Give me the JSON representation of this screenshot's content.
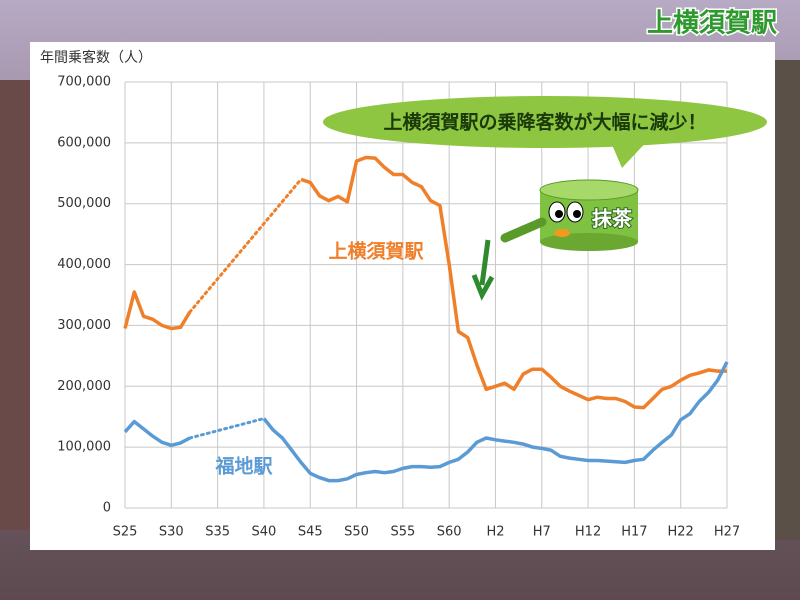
{
  "chart_data": {
    "type": "line",
    "title": "上横須賀駅",
    "ylabel": "年間乗客数（人）",
    "annotations": [
      "上横須賀駅の乗降客数が大幅に減少！",
      "抹茶"
    ],
    "categories": [
      "S25",
      null,
      null,
      null,
      null,
      "S30",
      null,
      null,
      null,
      null,
      "S35",
      null,
      null,
      null,
      null,
      "S40",
      null,
      null,
      null,
      null,
      "S45",
      null,
      null,
      null,
      null,
      "S50",
      null,
      null,
      null,
      null,
      "S55",
      null,
      null,
      null,
      null,
      "S60",
      null,
      null,
      null,
      null,
      "H2",
      null,
      null,
      null,
      null,
      "H7",
      null,
      null,
      null,
      null,
      "H12",
      null,
      null,
      null,
      null,
      "H17",
      null,
      null,
      null,
      null,
      "H22",
      null,
      null,
      null,
      null,
      "H27"
    ],
    "series": [
      {
        "name": "上横須賀駅",
        "color": "#f07f2a",
        "values": [
          295000,
          355000,
          315000,
          310000,
          300000,
          295000,
          297000,
          322000,
          null,
          null,
          null,
          null,
          null,
          null,
          null,
          null,
          null,
          null,
          null,
          540000,
          535000,
          513000,
          505000,
          512000,
          503000,
          570000,
          576000,
          575000,
          560000,
          548000,
          548000,
          535000,
          528000,
          505000,
          497000,
          400000,
          290000,
          280000,
          235000,
          195000,
          200000,
          205000,
          195000,
          220000,
          228000,
          228000,
          215000,
          200000,
          192000,
          185000,
          178000,
          182000,
          180000,
          180000,
          175000,
          166000,
          165000,
          180000,
          195000,
          200000,
          210000,
          218000,
          222000,
          227000,
          225000,
          225000
        ]
      },
      {
        "name": "福地駅",
        "color": "#5b9bd5",
        "values": [
          125000,
          142000,
          130000,
          118000,
          108000,
          103000,
          107000,
          115000,
          null,
          null,
          null,
          null,
          null,
          null,
          null,
          147000,
          128000,
          115000,
          95000,
          75000,
          57000,
          50000,
          45000,
          45000,
          48000,
          55000,
          58000,
          60000,
          58000,
          60000,
          65000,
          68000,
          68000,
          67000,
          68000,
          75000,
          80000,
          92000,
          108000,
          115000,
          112000,
          110000,
          108000,
          105000,
          100000,
          98000,
          95000,
          85000,
          82000,
          80000,
          78000,
          78000,
          77000,
          76000,
          75000,
          78000,
          80000,
          95000,
          108000,
          120000,
          145000,
          155000,
          175000,
          190000,
          210000,
          240000
        ]
      }
    ],
    "ylim": [
      0,
      700000
    ],
    "yticks": [
      0,
      {
        "value": 100000,
        "label": "100,000"
      },
      {
        "value": 200000,
        "label": "200,000"
      },
      {
        "value": 300000,
        "label": "300,000"
      },
      {
        "value": 400000,
        "label": "400,000"
      },
      {
        "value": 500000,
        "label": "500,000"
      },
      {
        "value": 600000,
        "label": "600,000"
      },
      {
        "value": 700000,
        "label": "700,000"
      }
    ],
    "grid": true,
    "gap_line": "dotted"
  }
}
